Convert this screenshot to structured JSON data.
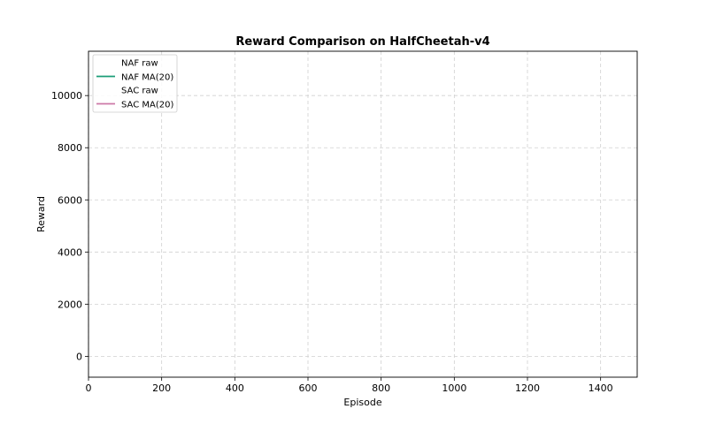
{
  "chart_data": {
    "type": "line",
    "title": "Reward Comparison on HalfCheetah-v4",
    "xlabel": "Episode",
    "ylabel": "Reward",
    "xlim": [
      0,
      1500
    ],
    "ylim": [
      -800,
      11700
    ],
    "xticks": [
      0,
      200,
      400,
      600,
      800,
      1000,
      1200,
      1400
    ],
    "yticks": [
      0,
      2000,
      4000,
      6000,
      8000,
      10000
    ],
    "grid": true,
    "legend_position": "top-left",
    "series": [
      {
        "name": "NAF raw",
        "color": "#1b9e77",
        "style": "raw",
        "x": [],
        "y": []
      },
      {
        "name": "NAF MA(20)",
        "color": "#1b9e77",
        "style": "ma",
        "x": [],
        "y": []
      },
      {
        "name": "SAC raw",
        "color": "#cc79a7",
        "style": "raw",
        "x": [],
        "y": []
      },
      {
        "name": "SAC MA(20)",
        "color": "#cc79a7",
        "style": "ma",
        "x": [],
        "y": []
      }
    ]
  }
}
